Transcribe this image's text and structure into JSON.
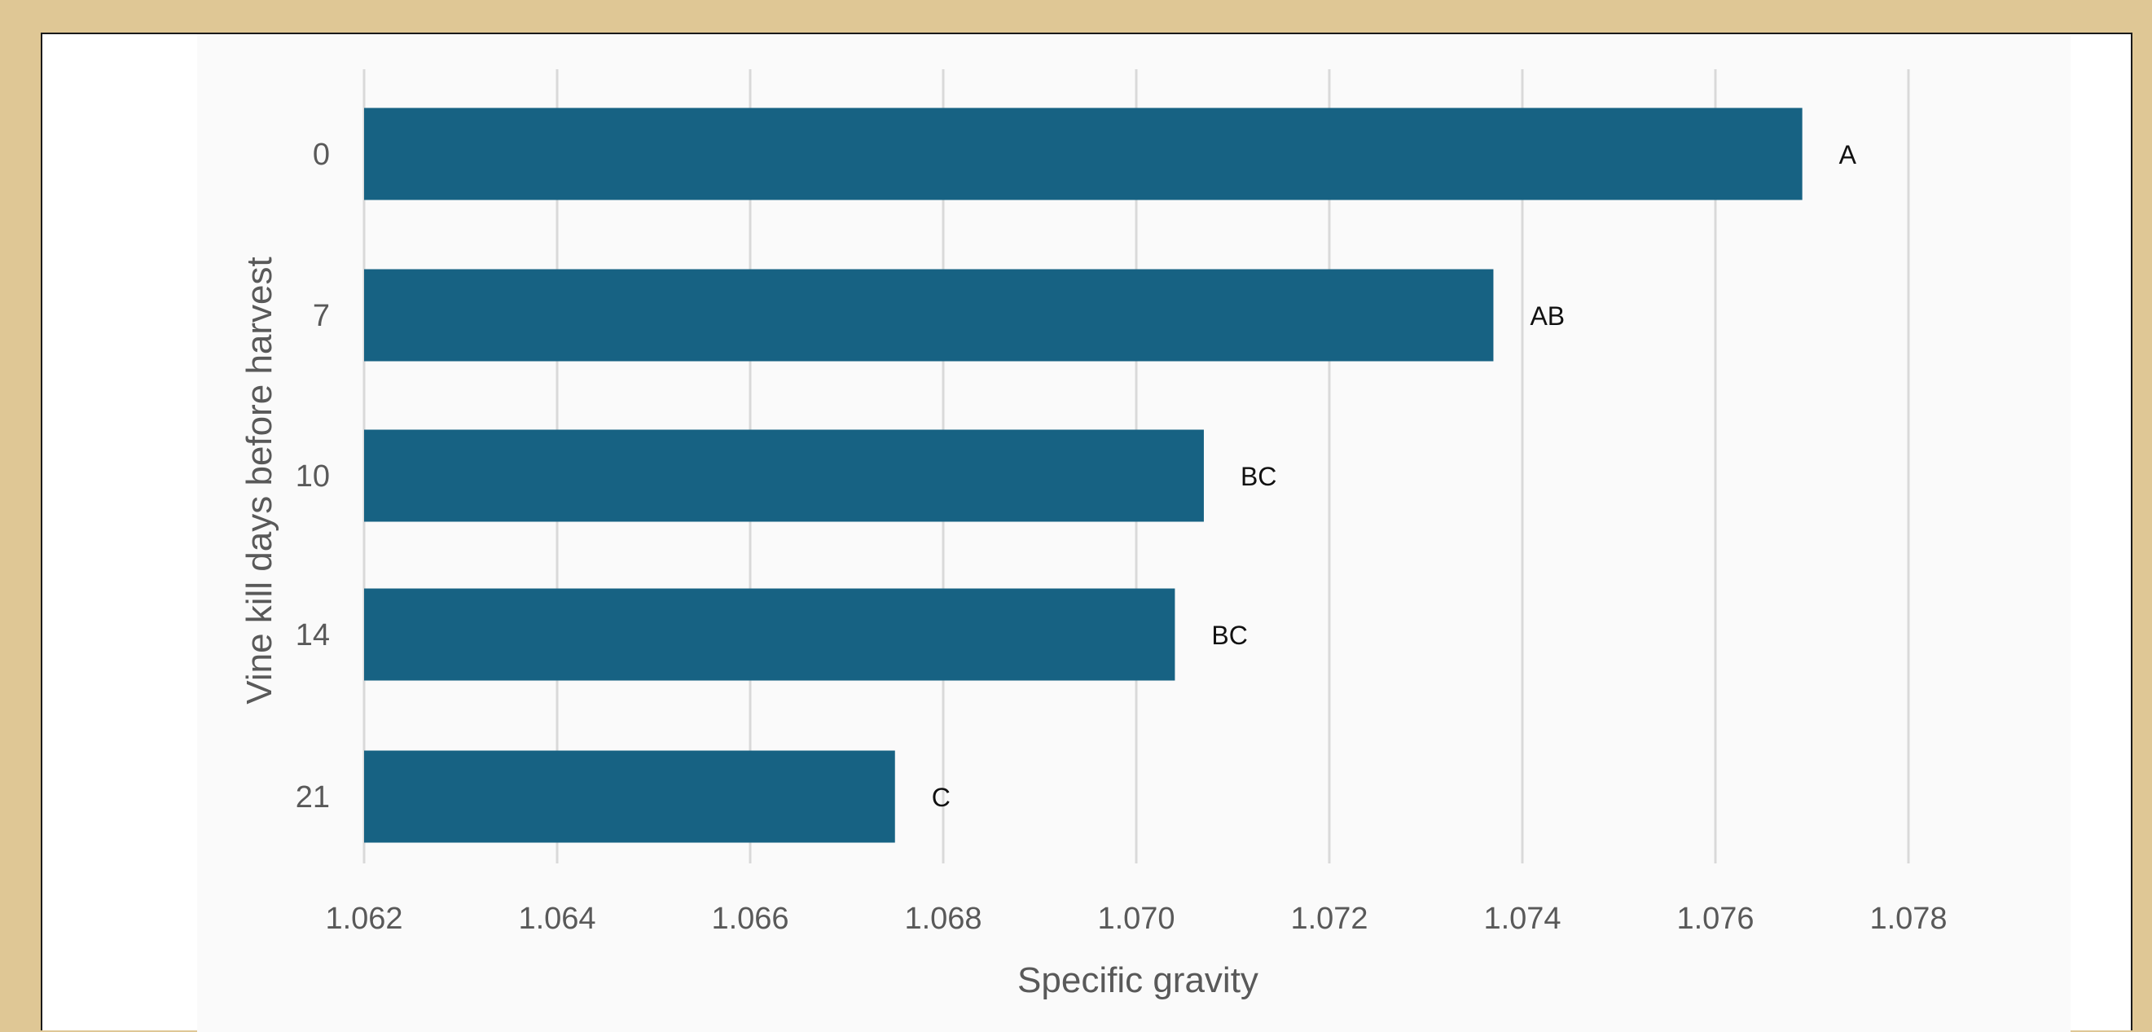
{
  "colors": {
    "frame_background": "#dfc795",
    "panel_background": "#ffffff",
    "bar": "#176283",
    "gridline": "#d9d9d9",
    "axis_text": "#595959"
  },
  "chart_data": {
    "type": "bar",
    "orientation": "horizontal",
    "title": "",
    "xlabel": "Specific gravity",
    "ylabel": "Vine kill days before harvest",
    "categories": [
      "0",
      "7",
      "10",
      "14",
      "21"
    ],
    "values": [
      1.0769,
      1.0737,
      1.0707,
      1.0704,
      1.0675
    ],
    "data_labels": [
      "A",
      "AB",
      "BC",
      "BC",
      "C"
    ],
    "xlim": [
      1.062,
      1.078
    ],
    "x_ticks": [
      "1.062",
      "1.064",
      "1.066",
      "1.068",
      "1.070",
      "1.072",
      "1.074",
      "1.076",
      "1.078"
    ],
    "grid": "vertical",
    "legend": "none"
  }
}
